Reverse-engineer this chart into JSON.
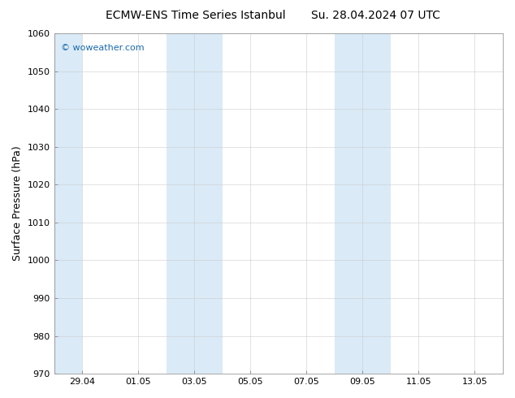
{
  "title_left": "ECMW-ENS Time Series Istanbul",
  "title_right": "Su. 28.04.2024 07 UTC",
  "ylabel": "Surface Pressure (hPa)",
  "ylim": [
    970,
    1060
  ],
  "yticks": [
    970,
    980,
    990,
    1000,
    1010,
    1020,
    1030,
    1040,
    1050,
    1060
  ],
  "xtick_labels": [
    "29.04",
    "01.05",
    "03.05",
    "05.05",
    "07.05",
    "09.05",
    "11.05",
    "13.05"
  ],
  "xtick_positions_days": [
    1,
    3,
    5,
    7,
    9,
    11,
    13,
    15
  ],
  "bg_color": "#ffffff",
  "stripe_color": "#daeaf7",
  "stripe_day_starts": [
    0,
    4,
    5,
    10,
    11
  ],
  "stripe_widths": [
    1,
    1,
    1,
    1,
    1
  ],
  "watermark_text": "© woweather.com",
  "watermark_color": "#1a6aaa",
  "title_fontsize": 10,
  "tick_fontsize": 8,
  "ylabel_fontsize": 9,
  "total_days": 16,
  "xlim": [
    0,
    16
  ]
}
